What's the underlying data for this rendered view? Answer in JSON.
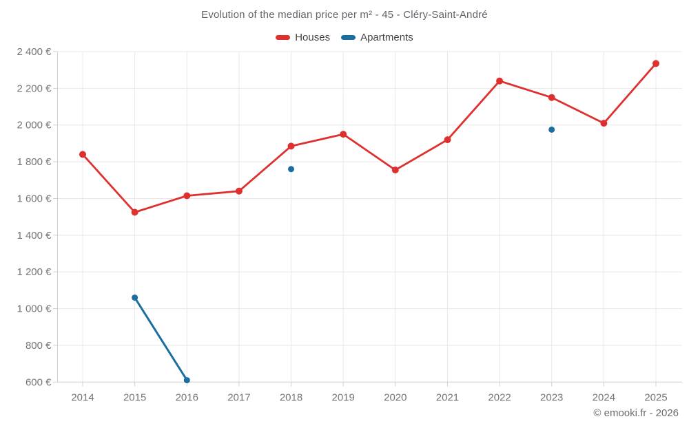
{
  "header": {
    "title": "Evolution of the median price per m² - 45 - Cléry-Saint-André"
  },
  "chart_data": {
    "type": "line",
    "title": "Evolution of the median price per m² - 45 - Cléry-Saint-André",
    "x": [
      2014,
      2015,
      2016,
      2017,
      2018,
      2019,
      2020,
      2021,
      2022,
      2023,
      2024,
      2025
    ],
    "series": [
      {
        "name": "Houses",
        "color": "#df3030",
        "values": [
          1840,
          1525,
          1615,
          1640,
          1885,
          1950,
          1755,
          1920,
          2240,
          2150,
          2010,
          2335
        ]
      },
      {
        "name": "Apartments",
        "color": "#1b6fa0",
        "values": [
          null,
          1060,
          610,
          null,
          1760,
          null,
          null,
          null,
          null,
          1975,
          null,
          null
        ]
      }
    ],
    "ylim": [
      600,
      2400
    ],
    "ytick_step": 200,
    "y_unit": "€",
    "grid": true,
    "legend_position": "top",
    "colors": {
      "gridline": "#e8e8e8",
      "axis": "#d0d0d0",
      "tick_label": "#757575"
    }
  },
  "footer": {
    "copyright": "© emooki.fr - 2026"
  }
}
